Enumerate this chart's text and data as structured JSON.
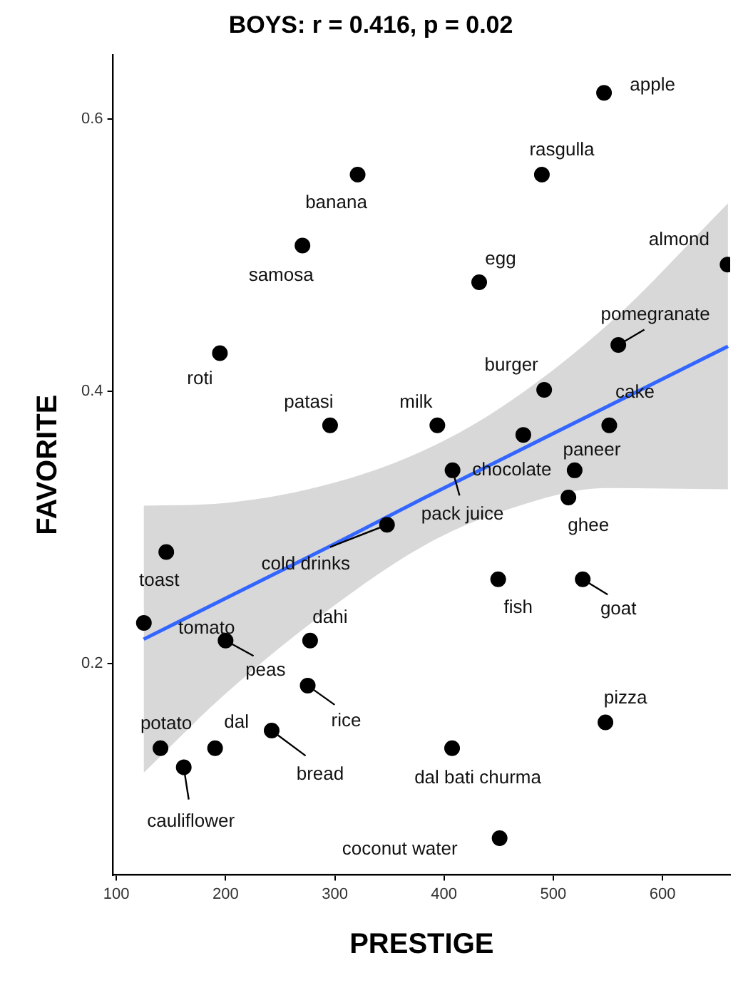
{
  "chart_data": {
    "type": "scatter",
    "title": "BOYS: r = 0.416, p = 0.02",
    "xlabel": "PRESTIGE",
    "ylabel": "FAVORITE",
    "xlim": [
      97,
      662
    ],
    "ylim": [
      0.045,
      0.647
    ],
    "xticks": [
      100,
      200,
      300,
      400,
      500,
      600
    ],
    "yticks": [
      0.2,
      0.4,
      0.6
    ],
    "grid": false,
    "legend": false,
    "series": [
      {
        "marker": "circle",
        "color": "#000000",
        "x": [
          546.5,
          489.6,
          320.9,
          270.4,
          432.2,
          659.6,
          559.6,
          194.8,
          491.7,
          393.9,
          295.7,
          551.3,
          472.6,
          407.8,
          519.6,
          513.9,
          347.8,
          145.7,
          449.6,
          527,
          125.2,
          200,
          277.4,
          275.2,
          547.8,
          140.4,
          190.4,
          407.4,
          242.2,
          161.7,
          450.9
        ],
        "values": [
          0.619,
          0.559,
          0.559,
          0.507,
          0.48,
          0.493,
          0.434,
          0.428,
          0.401,
          0.375,
          0.375,
          0.375,
          0.368,
          0.342,
          0.342,
          0.322,
          0.302,
          0.282,
          0.262,
          0.262,
          0.23,
          0.217,
          0.217,
          0.184,
          0.157,
          0.138,
          0.138,
          0.138,
          0.151,
          0.124,
          0.072
        ]
      },
      {
        "type": "line",
        "color": "#3366ff",
        "line_style": "solid",
        "x": [
          125,
          200,
          300,
          380,
          450,
          550,
          660
        ],
        "values": [
          0.218,
          0.248,
          0.288,
          0.321,
          0.349,
          0.389,
          0.433
        ],
        "lower": [
          0.12,
          0.178,
          0.243,
          0.286,
          0.311,
          0.329,
          0.328
        ],
        "upper": [
          0.316,
          0.318,
          0.333,
          0.356,
          0.387,
          0.449,
          0.538
        ]
      }
    ],
    "annotations": [
      {
        "text": "apple",
        "x": 546.5,
        "y": 0.619
      },
      {
        "text": "rasgulla",
        "x": 489.6,
        "y": 0.559
      },
      {
        "text": "banana",
        "x": 320.9,
        "y": 0.559
      },
      {
        "text": "samosa",
        "x": 270.4,
        "y": 0.507
      },
      {
        "text": "egg",
        "x": 432.2,
        "y": 0.48
      },
      {
        "text": "almond",
        "x": 659.6,
        "y": 0.493
      },
      {
        "text": "pomegranate",
        "x": 559.6,
        "y": 0.434
      },
      {
        "text": "roti",
        "x": 194.8,
        "y": 0.428
      },
      {
        "text": "burger",
        "x": 491.7,
        "y": 0.401
      },
      {
        "text": "milk",
        "x": 393.9,
        "y": 0.375
      },
      {
        "text": "patasi",
        "x": 295.7,
        "y": 0.375
      },
      {
        "text": "cake",
        "x": 551.3,
        "y": 0.375
      },
      {
        "text": "chocolate",
        "x": 472.6,
        "y": 0.368
      },
      {
        "text": "pack juice",
        "x": 407.8,
        "y": 0.342
      },
      {
        "text": "paneer",
        "x": 519.6,
        "y": 0.342
      },
      {
        "text": "ghee",
        "x": 513.9,
        "y": 0.322
      },
      {
        "text": "cold drinks",
        "x": 347.8,
        "y": 0.302
      },
      {
        "text": "toast",
        "x": 145.7,
        "y": 0.282
      },
      {
        "text": "fish",
        "x": 449.6,
        "y": 0.262
      },
      {
        "text": "goat",
        "x": 527,
        "y": 0.262
      },
      {
        "text": "tomato",
        "x": 125.2,
        "y": 0.23
      },
      {
        "text": "peas",
        "x": 200,
        "y": 0.217
      },
      {
        "text": "dahi",
        "x": 277.4,
        "y": 0.217
      },
      {
        "text": "rice",
        "x": 275.2,
        "y": 0.184
      },
      {
        "text": "pizza",
        "x": 547.8,
        "y": 0.157
      },
      {
        "text": "potato",
        "x": 140.4,
        "y": 0.138
      },
      {
        "text": "dal",
        "x": 190.4,
        "y": 0.138
      },
      {
        "text": "dal bati churma",
        "x": 407.4,
        "y": 0.138
      },
      {
        "text": "bread",
        "x": 242.2,
        "y": 0.151
      },
      {
        "text": "cauliflower",
        "x": 161.7,
        "y": 0.124
      },
      {
        "text": "coconut water",
        "x": 450.9,
        "y": 0.072
      }
    ]
  }
}
